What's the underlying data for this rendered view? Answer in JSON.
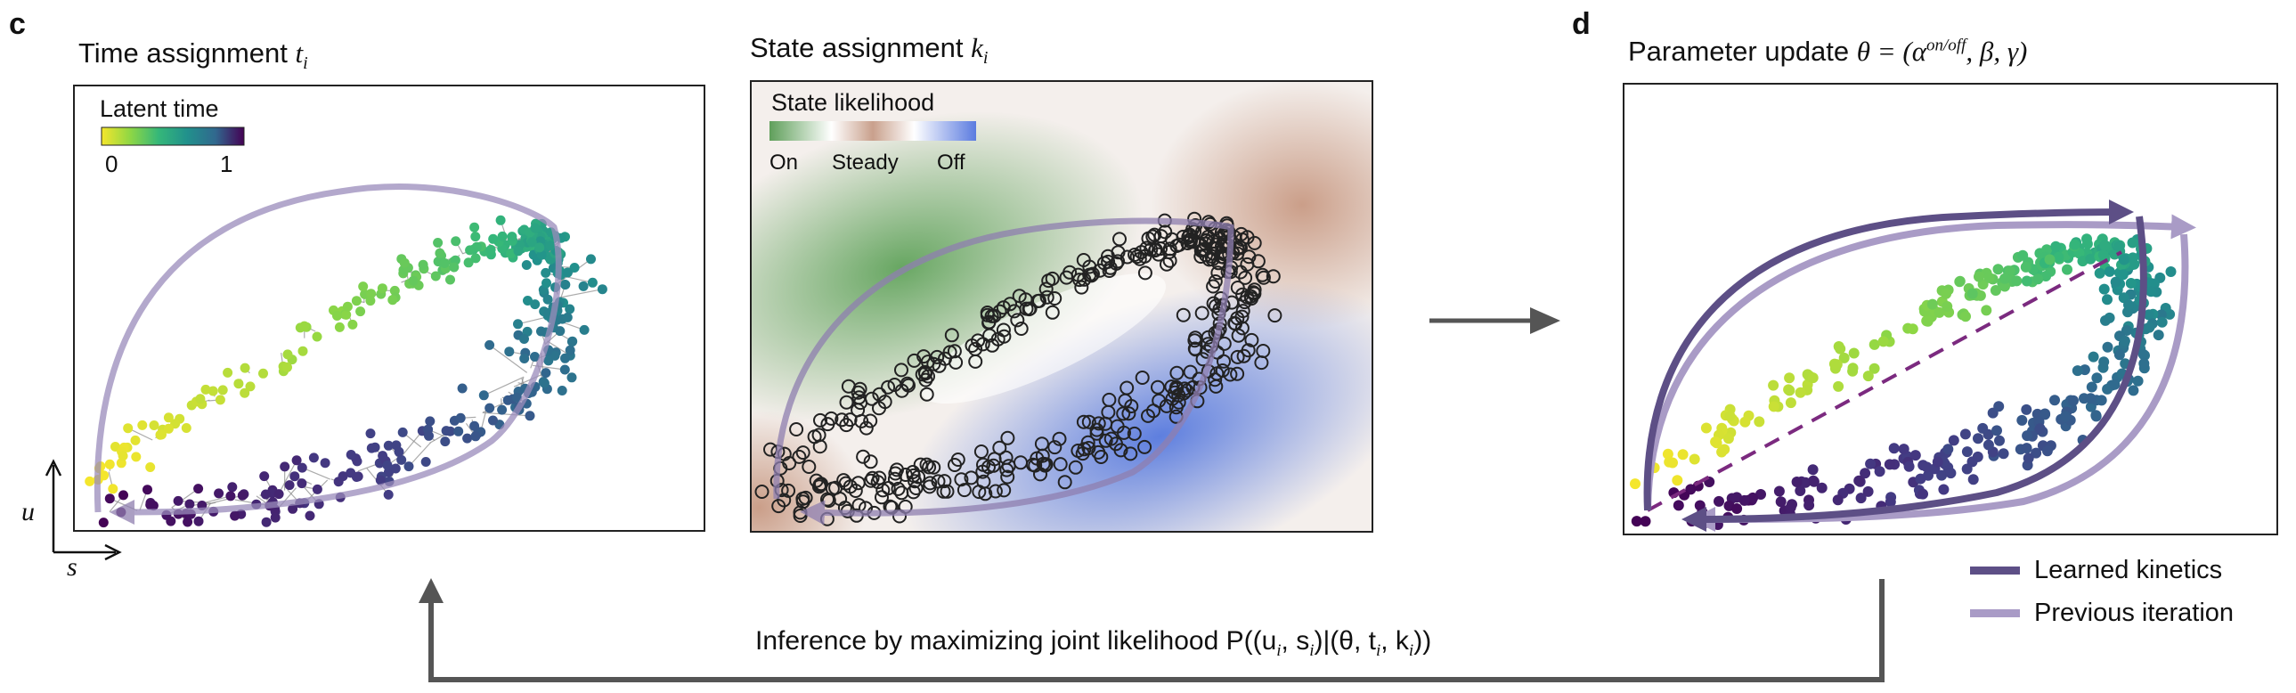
{
  "panels": {
    "c": {
      "letter": "c",
      "time": {
        "title_main": "Time assignment",
        "title_var": "t",
        "title_sub": "i",
        "colorbar": {
          "label": "Latent time",
          "min_label": "0",
          "max_label": "1",
          "colors": [
            "#f5e62c",
            "#8fd744",
            "#35b779",
            "#21918c",
            "#31688e",
            "#443a83",
            "#440154"
          ]
        }
      },
      "state": {
        "title_main": "State assignment",
        "title_var": "k",
        "title_sub": "i",
        "colorbar": {
          "label": "State likelihood",
          "ticks": [
            "On",
            "Steady",
            "Off"
          ],
          "colors": [
            "#4e9a4e",
            "#ffffff",
            "#c98f76",
            "#ffffff",
            "#5b7be0"
          ]
        }
      },
      "axes": {
        "y_label": "u",
        "x_label": "s"
      }
    },
    "d": {
      "letter": "d",
      "title_main": "Parameter update",
      "title_eq_prefix": "θ = (α",
      "title_superscript": "on/off",
      "title_eq_suffix": ", β, γ)"
    }
  },
  "legend": [
    {
      "label": "Learned kinetics",
      "color": "#5d4f86"
    },
    {
      "label": "Previous iteration",
      "color": "#a99bc6"
    }
  ],
  "inference": {
    "text_prefix": "Inference by maximizing joint likelihood P((u",
    "sub1": "i",
    "mid1": ", s",
    "sub2": "i",
    "mid2": ")|(θ, t",
    "sub3": "i",
    "mid3": ", k",
    "sub4": "i",
    "suffix": "))"
  }
}
